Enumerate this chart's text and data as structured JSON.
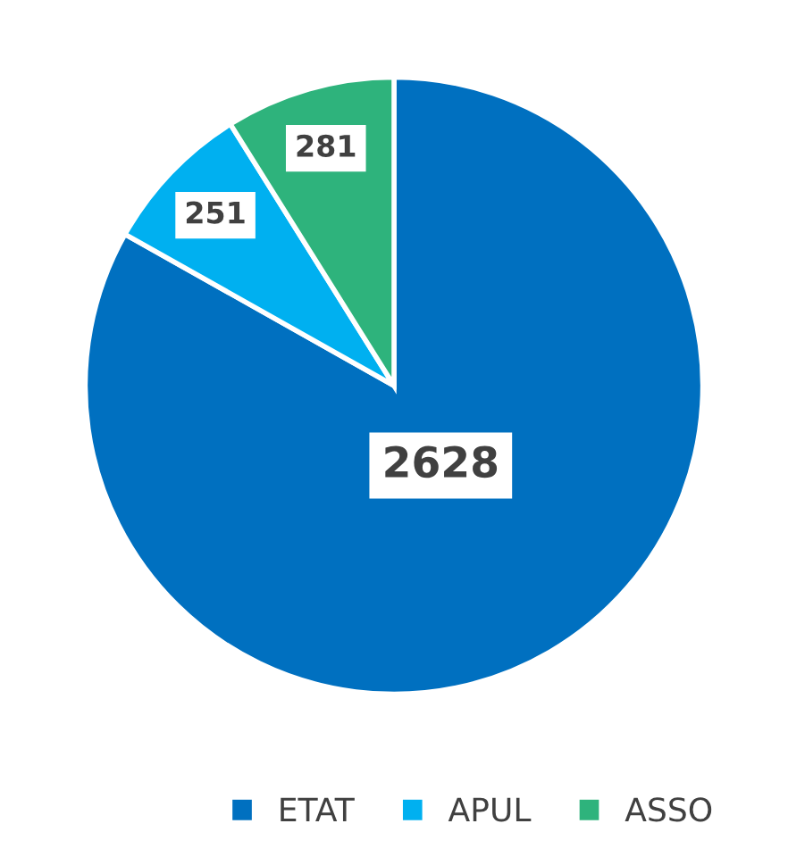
{
  "chart_data": {
    "type": "pie",
    "categories": [
      "ETAT",
      "APUL",
      "ASSO"
    ],
    "values": [
      2628,
      251,
      281
    ],
    "colors": [
      "#0070c0",
      "#00b0f0",
      "#2eb37c"
    ],
    "data_labels": true,
    "legend": "bottom"
  }
}
